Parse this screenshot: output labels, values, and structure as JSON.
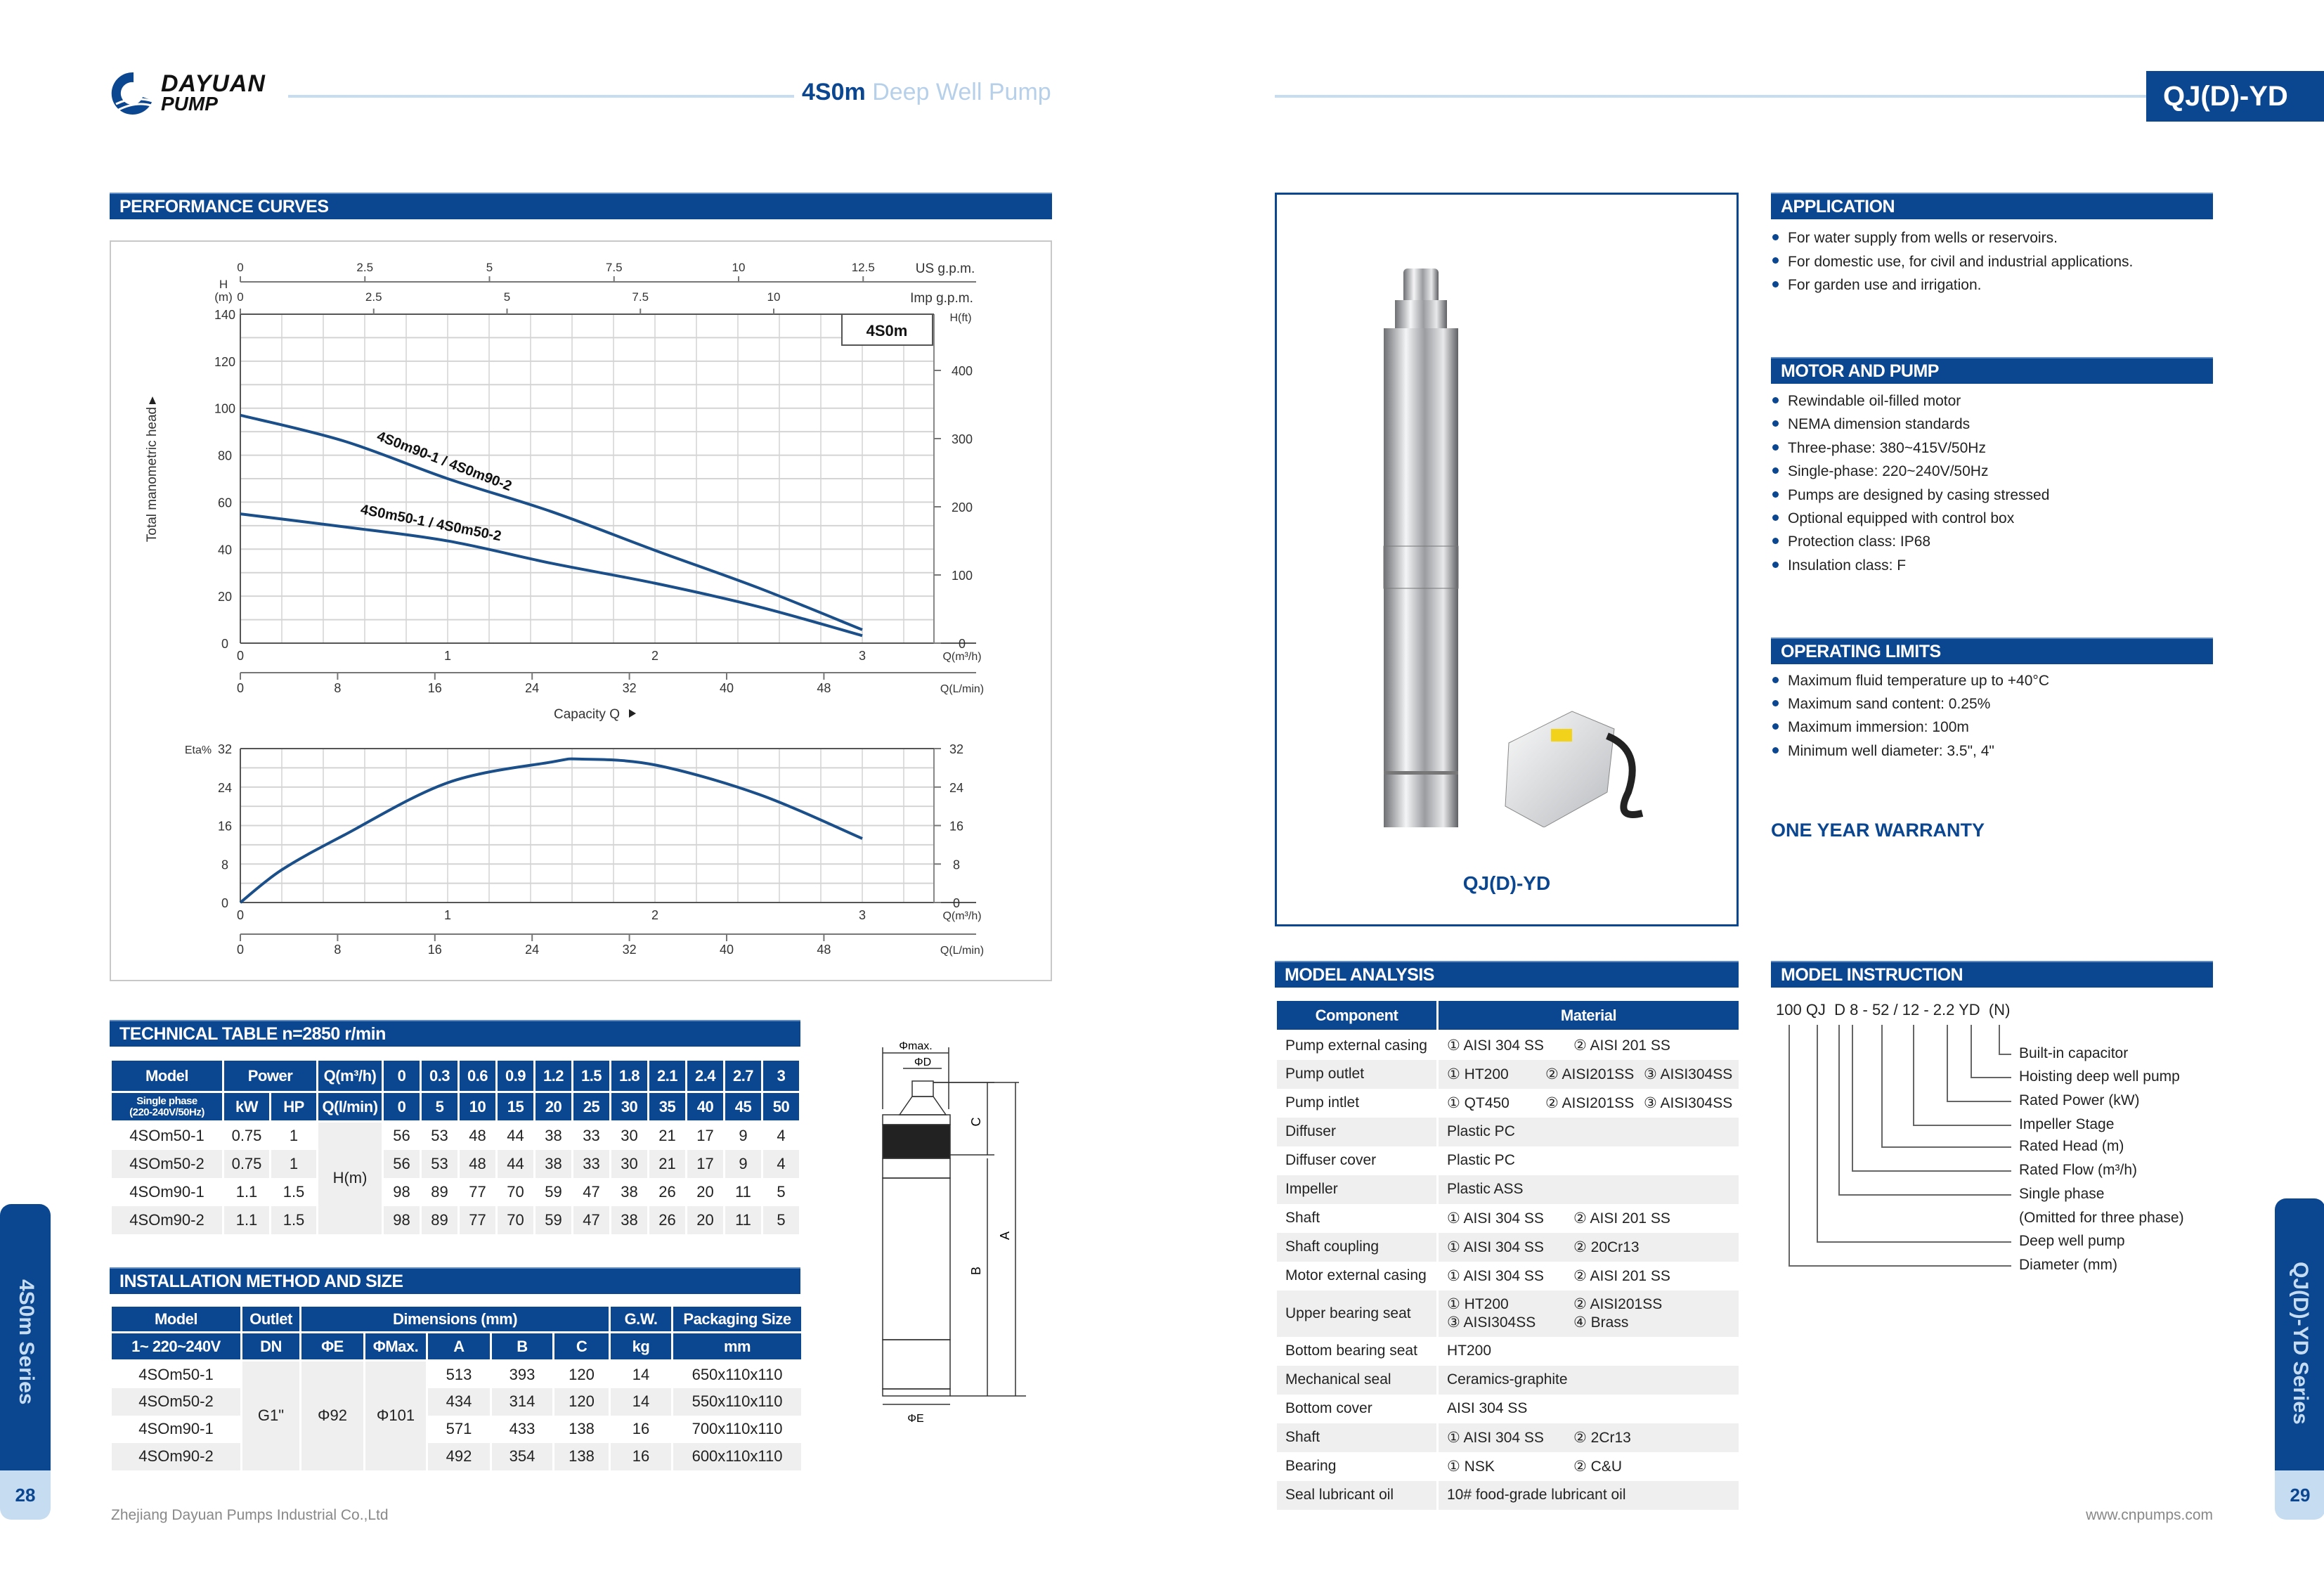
{
  "colors": {
    "brand_blue": "#0b4690",
    "light_blue": "#c6dcf0",
    "row_gray": "#efefef",
    "curve": "#1a4f8a"
  },
  "header": {
    "brand_line1": "DAYUAN",
    "brand_line2": "PUMP",
    "title_model": "4S0m",
    "title_rest": "Deep Well Pump",
    "badge": "QJ(D)-YD"
  },
  "performance": {
    "title": "PERFORMANCE CURVES"
  },
  "chart_data": [
    {
      "type": "line",
      "box_label": "4S0m",
      "ylabel": "Total manometric head",
      "y_unit_top": "H",
      "y_unit_bottom": "(m)",
      "y2label": "H(ft)",
      "xlabel": "Capacity Q",
      "x_unit": "Q(m³/h)",
      "x2_unit": "Q(L/min)",
      "top_unit_1": "US g.p.m.",
      "top_unit_2": "Imp g.p.m.",
      "ylim": [
        0,
        140
      ],
      "xlim": [
        0,
        3.35
      ],
      "grid": true,
      "yticks": [
        "0",
        "20",
        "40",
        "60",
        "80",
        "100",
        "120",
        "140"
      ],
      "y2ticks": [
        "0",
        "100",
        "200",
        "300",
        "400"
      ],
      "xticks": [
        "0",
        "1",
        "2",
        "3"
      ],
      "x2ticks": [
        "0",
        "8",
        "16",
        "24",
        "32",
        "40",
        "48"
      ],
      "usgpm_ticks": [
        "0",
        "2.5",
        "5",
        "7.5",
        "10",
        "12.5"
      ],
      "impgpm_ticks": [
        "0",
        "2.5",
        "5",
        "7.5",
        "10"
      ],
      "series": [
        {
          "name": "4S0m90-1 / 4S0m90-2",
          "x": [
            0,
            0.5,
            1,
            1.5,
            2,
            2.5,
            3
          ],
          "y": [
            97,
            86,
            70,
            56,
            39.5,
            23.5,
            5.7
          ]
        },
        {
          "name": "4S0m50-1 / 4S0m50-2",
          "x": [
            0,
            0.5,
            1,
            1.5,
            2,
            2.5,
            3
          ],
          "y": [
            55,
            49.5,
            43.5,
            34,
            25.5,
            15.5,
            3.2
          ]
        }
      ]
    },
    {
      "type": "line",
      "ylabel": "Eta%",
      "x_unit": "Q(m³/h)",
      "x2_unit": "Q(L/min)",
      "ylim": [
        0,
        32
      ],
      "xlim": [
        0,
        3.35
      ],
      "grid": true,
      "yticks": [
        "0",
        "8",
        "16",
        "24",
        "32"
      ],
      "xticks": [
        "0",
        "1",
        "2",
        "3"
      ],
      "x2ticks": [
        "0",
        "8",
        "16",
        "24",
        "32",
        "40",
        "48"
      ],
      "series": [
        {
          "x": [
            0,
            0.2,
            0.5,
            1,
            1.5,
            1.65,
            2,
            2.5,
            3
          ],
          "y": [
            0,
            6.8,
            14,
            24.9,
            29.2,
            29.8,
            28.6,
            22.5,
            13.3
          ]
        }
      ]
    }
  ],
  "technical": {
    "title": "TECHNICAL TABLE n=2850 r/min",
    "header1": [
      "Model",
      "Power",
      "Q(m³/h)",
      "0",
      "0.3",
      "0.6",
      "0.9",
      "1.2",
      "1.5",
      "1.8",
      "2.1",
      "2.4",
      "2.7",
      "3"
    ],
    "header2_model": "Single phase",
    "header2_model_sub": "(220-240V/50Hz)",
    "header2": [
      "kW",
      "HP",
      "Q(l/min)",
      "0",
      "5",
      "10",
      "15",
      "20",
      "25",
      "30",
      "35",
      "40",
      "45",
      "50"
    ],
    "unit": "H(m)",
    "rows": [
      {
        "model": "4SOm50-1",
        "kw": "0.75",
        "hp": "1",
        "values": [
          "56",
          "53",
          "48",
          "44",
          "38",
          "33",
          "30",
          "21",
          "17",
          "9",
          "4"
        ]
      },
      {
        "model": "4SOm50-2",
        "kw": "0.75",
        "hp": "1",
        "values": [
          "56",
          "53",
          "48",
          "44",
          "38",
          "33",
          "30",
          "21",
          "17",
          "9",
          "4"
        ]
      },
      {
        "model": "4SOm90-1",
        "kw": "1.1",
        "hp": "1.5",
        "values": [
          "98",
          "89",
          "77",
          "70",
          "59",
          "47",
          "38",
          "26",
          "20",
          "11",
          "5"
        ]
      },
      {
        "model": "4SOm90-2",
        "kw": "1.1",
        "hp": "1.5",
        "values": [
          "98",
          "89",
          "77",
          "70",
          "59",
          "47",
          "38",
          "26",
          "20",
          "11",
          "5"
        ]
      }
    ]
  },
  "installation": {
    "title": "INSTALLATION METHOD AND SIZE",
    "header1": [
      "Model",
      "Outlet",
      "Dimensions (mm)",
      "G.W.",
      "Packaging Size"
    ],
    "header2": [
      "1~ 220~240V",
      "DN",
      "ΦE",
      "ΦMax.",
      "A",
      "B",
      "C",
      "kg",
      "mm"
    ],
    "outlet": "G1\"",
    "phi_e": "Φ92",
    "phi_max": "Φ101",
    "rows": [
      {
        "model": "4SOm50-1",
        "a": "513",
        "b": "393",
        "c": "120",
        "kg": "14",
        "pack": "650x110x110"
      },
      {
        "model": "4SOm50-2",
        "a": "434",
        "b": "314",
        "c": "120",
        "kg": "14",
        "pack": "550x110x110"
      },
      {
        "model": "4SOm90-1",
        "a": "571",
        "b": "433",
        "c": "138",
        "kg": "16",
        "pack": "700x110x110"
      },
      {
        "model": "4SOm90-2",
        "a": "492",
        "b": "354",
        "c": "138",
        "kg": "16",
        "pack": "600x110x110"
      }
    ]
  },
  "drawing": {
    "phi_max": "Φmax.",
    "phi_d": "ΦD",
    "c": "C",
    "b": "B",
    "a": "A",
    "phi_e": "ΦE"
  },
  "product": {
    "caption": "QJ(D)-YD"
  },
  "application": {
    "title": "APPLICATION",
    "items": [
      "For water supply from wells or reservoirs.",
      "For domestic use, for civil and industrial applications.",
      "For garden use and irrigation."
    ]
  },
  "motor": {
    "title": "MOTOR AND PUMP",
    "items": [
      "Rewindable oil-filled motor",
      "NEMA dimension standards",
      "Three-phase: 380~415V/50Hz",
      "Single-phase: 220~240V/50Hz",
      "Pumps are designed by casing stressed",
      "Optional equipped with control box",
      "Protection class: IP68",
      "Insulation class: F"
    ]
  },
  "limits": {
    "title": "OPERATING LIMITS",
    "items": [
      "Maximum fluid temperature up to +40°C",
      "Maximum sand content: 0.25%",
      "Maximum immersion: 100m",
      "Minimum well diameter: 3.5\", 4\""
    ]
  },
  "warranty": "ONE YEAR WARRANTY",
  "model_analysis": {
    "title": "MODEL ANALYSIS",
    "header": [
      "Component",
      "Material"
    ],
    "rows": [
      {
        "component": "Pump external casing",
        "material": [
          "① AISI 304 SS",
          "② AISI 201 SS"
        ]
      },
      {
        "component": "Pump outlet",
        "material": [
          "① HT200",
          "② AISI201SS",
          "③ AISI304SS"
        ]
      },
      {
        "component": "Pump intlet",
        "material": [
          "① QT450",
          "② AISI201SS",
          "③ AISI304SS"
        ]
      },
      {
        "component": "Diffuser",
        "material": [
          "Plastic PC"
        ]
      },
      {
        "component": "Diffuser cover",
        "material": [
          "Plastic PC"
        ]
      },
      {
        "component": "Impeller",
        "material": [
          "Plastic ASS"
        ]
      },
      {
        "component": "Shaft",
        "material": [
          "① AISI 304 SS",
          "② AISI 201 SS"
        ]
      },
      {
        "component": "Shaft coupling",
        "material": [
          "① AISI 304 SS",
          "② 20Cr13"
        ]
      },
      {
        "component": "Motor external casing",
        "material": [
          "① AISI 304 SS",
          "② AISI 201 SS"
        ]
      },
      {
        "component": "Upper bearing seat",
        "material": [
          "① HT200",
          "② AISI201SS",
          "③ AISI304SS",
          "④ Brass"
        ]
      },
      {
        "component": "Bottom bearing seat",
        "material": [
          "HT200"
        ]
      },
      {
        "component": "Mechanical seal",
        "material": [
          "Ceramics-graphite"
        ]
      },
      {
        "component": "Bottom cover",
        "material": [
          "AISI 304 SS"
        ]
      },
      {
        "component": "Shaft",
        "material": [
          "① AISI 304 SS",
          "② 2Cr13"
        ]
      },
      {
        "component": "Bearing",
        "material": [
          "① NSK",
          "② C&U"
        ]
      },
      {
        "component": "Seal lubricant oil",
        "material": [
          "10# food-grade lubricant oil"
        ]
      }
    ]
  },
  "model_instruction": {
    "title": "MODEL INSTRUCTION",
    "code": "100 QJ  D 8 - 52 / 12 - 2.2 YD  (N)",
    "labels": [
      "Built-in capacitor",
      "Hoisting deep well pump",
      "Rated Power (kW)",
      "Impeller Stage",
      "Rated Head (m)",
      "Rated Flow (m³/h)",
      "Single phase",
      "(Omitted for three phase)",
      "Deep well pump",
      "Diameter (mm)"
    ]
  },
  "footer": {
    "left": "Zhejiang Dayuan Pumps Industrial Co.,Ltd",
    "right": "www.cnpumps.com",
    "left_series": "4S0m Series",
    "right_series": "QJ(D)-YD Series",
    "page_left": "28",
    "page_right": "29"
  }
}
